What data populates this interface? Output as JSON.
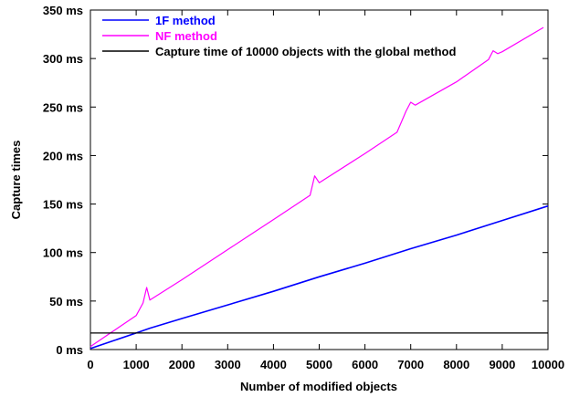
{
  "chart_data": {
    "type": "line",
    "title": "",
    "xlabel": "Number of modified objects",
    "ylabel": "Capture times",
    "xlim": [
      0,
      10000
    ],
    "ylim": [
      0,
      350
    ],
    "x_ticks": [
      0,
      1000,
      2000,
      3000,
      4000,
      5000,
      6000,
      7000,
      8000,
      9000,
      10000
    ],
    "y_ticks": [
      0,
      50,
      100,
      150,
      200,
      250,
      300,
      350
    ],
    "y_tick_labels": [
      "0 ms",
      "50 ms",
      "100 ms",
      "150 ms",
      "200 ms",
      "250 ms",
      "300 ms",
      "350 ms"
    ],
    "grid": false,
    "legend_position": "top-left",
    "series": [
      {
        "name": "1F method",
        "color": "#0000ff",
        "x": [
          0,
          500,
          1000,
          1300,
          2000,
          3000,
          4000,
          5000,
          6000,
          7000,
          8000,
          9000,
          10000
        ],
        "y": [
          1,
          9,
          17,
          22,
          32,
          46,
          60,
          75,
          89,
          104,
          118,
          133,
          148
        ]
      },
      {
        "name": "NF method",
        "color": "#ff00ff",
        "x": [
          0,
          500,
          1000,
          1150,
          1230,
          1300,
          2000,
          3000,
          4000,
          4800,
          4900,
          5000,
          6000,
          6700,
          6900,
          7000,
          7100,
          8000,
          8700,
          8800,
          8900,
          9000,
          9900
        ],
        "y": [
          3,
          19,
          35,
          48,
          64,
          51,
          72,
          103,
          134,
          159,
          179,
          172,
          202,
          224,
          246,
          255,
          252,
          276,
          299,
          308,
          305,
          307,
          332
        ]
      },
      {
        "name": "Capture time of 10000 objects with the global method",
        "color": "#000000",
        "x": [
          0,
          10000
        ],
        "y": [
          17,
          17
        ]
      }
    ]
  }
}
